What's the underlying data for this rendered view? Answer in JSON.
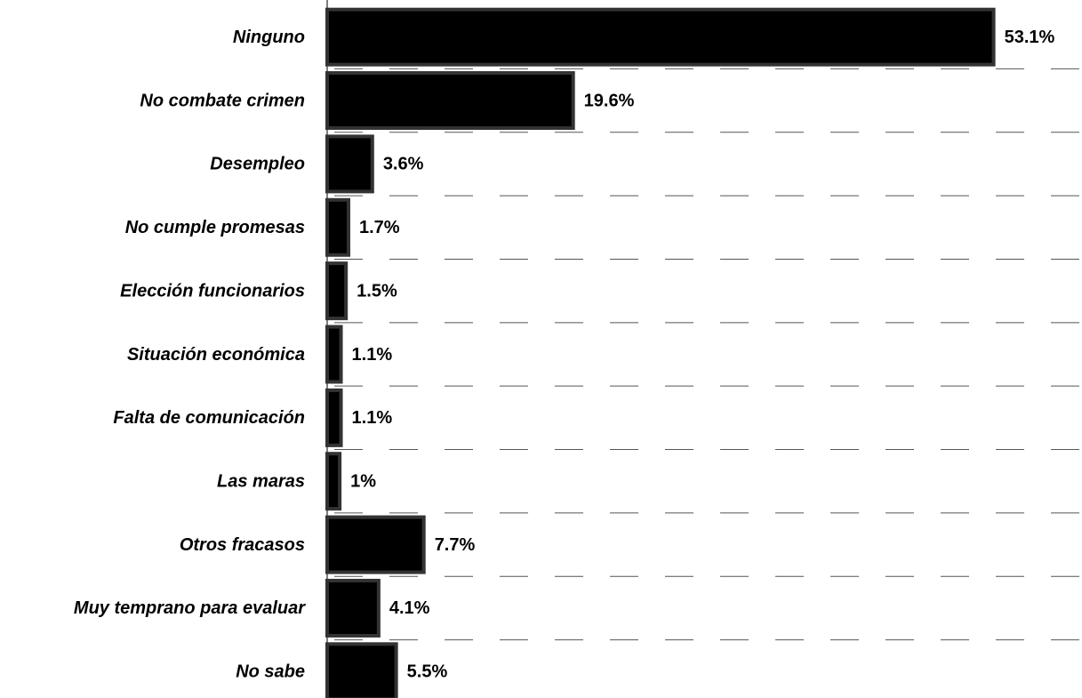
{
  "chart_data": {
    "type": "bar",
    "orientation": "horizontal",
    "categories": [
      "Ninguno",
      "No combate crimen",
      "Desempleo",
      "No cumple promesas",
      "Elección funcionarios",
      "Situación económica",
      "Falta de comunicación",
      "Las maras",
      "Otros fracasos",
      "Muy temprano para evaluar",
      "No sabe"
    ],
    "values": [
      53.1,
      19.6,
      3.6,
      1.7,
      1.5,
      1.1,
      1.1,
      1,
      7.7,
      4.1,
      5.5
    ],
    "value_labels": [
      "53.1%",
      "19.6%",
      "3.6%",
      "1.7%",
      "1.5%",
      "1.1%",
      "1.1%",
      "1%",
      "7.7%",
      "4.1%",
      "5.5%"
    ],
    "color": "#000000",
    "edge_color": "#333333",
    "xlim": [
      0,
      60
    ]
  }
}
